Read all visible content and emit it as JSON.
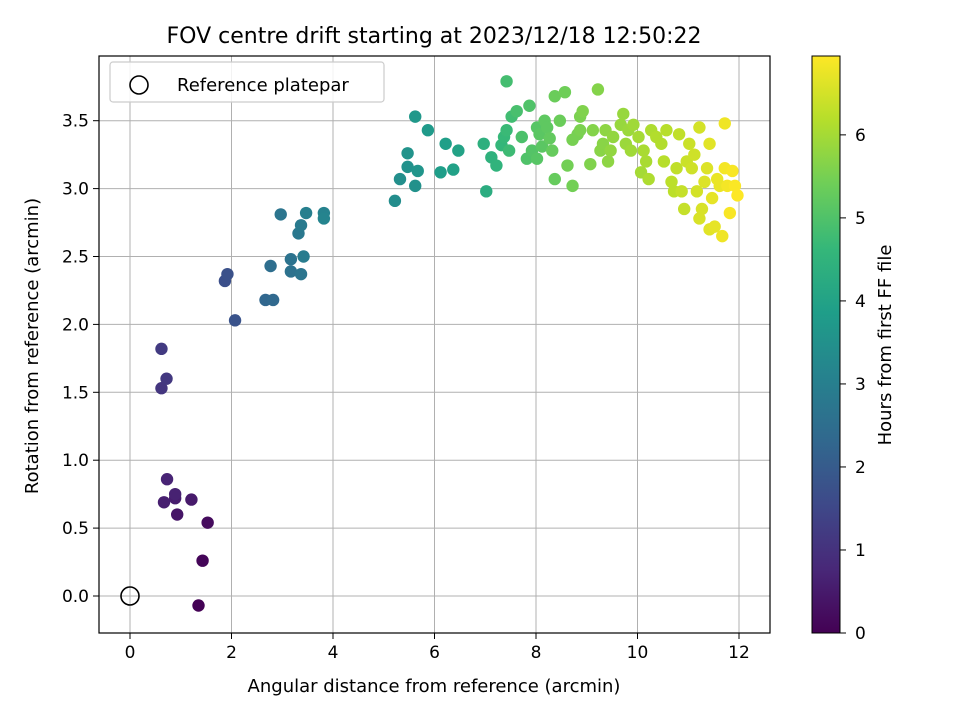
{
  "chart_data": {
    "type": "scatter",
    "title": "FOV centre drift starting at 2023/12/18 12:50:22",
    "xlabel": "Angular distance from reference (arcmin)",
    "ylabel": "Rotation from reference (arcmin)",
    "xlim": [
      -0.6,
      12.6
    ],
    "ylim": [
      -0.27,
      3.97
    ],
    "xticks": [
      0,
      2,
      4,
      6,
      8,
      10,
      12
    ],
    "yticks": [
      0.0,
      0.5,
      1.0,
      1.5,
      2.0,
      2.5,
      3.0,
      3.5
    ],
    "xtick_labels": [
      "0",
      "2",
      "4",
      "6",
      "8",
      "10",
      "12"
    ],
    "ytick_labels": [
      "0.0",
      "0.5",
      "1.0",
      "1.5",
      "2.0",
      "2.5",
      "3.0",
      "3.5"
    ],
    "grid": true,
    "legend": {
      "position": "top-left",
      "entries": [
        "Reference platepar"
      ]
    },
    "reference_point": {
      "x": 0,
      "y": 0
    },
    "colorbar": {
      "label": "Hours from first FF file",
      "colormap": "viridis",
      "range": [
        0,
        6.95
      ],
      "ticks": [
        0,
        1,
        2,
        3,
        4,
        5,
        6
      ],
      "tick_labels": [
        "0",
        "1",
        "2",
        "3",
        "4",
        "5",
        "6"
      ],
      "colors": [
        "#440154",
        "#482878",
        "#3e4989",
        "#31688e",
        "#26828e",
        "#1f9e89",
        "#35b779",
        "#6ece58",
        "#b5de2b",
        "#fde725"
      ]
    },
    "series": [
      {
        "points": [
          [
            1.35,
            -0.07,
            0.02
          ],
          [
            1.43,
            0.26,
            0.08
          ],
          [
            1.53,
            0.54,
            0.2
          ],
          [
            0.93,
            0.6,
            0.4
          ],
          [
            1.21,
            0.71,
            0.5
          ],
          [
            0.89,
            0.72,
            0.55
          ],
          [
            0.67,
            0.69,
            0.6
          ],
          [
            0.89,
            0.75,
            0.65
          ],
          [
            0.73,
            0.86,
            0.7
          ],
          [
            0.62,
            1.53,
            1.1
          ],
          [
            0.72,
            1.6,
            1.15
          ],
          [
            0.62,
            1.82,
            1.2
          ],
          [
            2.07,
            2.03,
            1.8
          ],
          [
            1.87,
            2.32,
            1.7
          ],
          [
            1.92,
            2.37,
            1.75
          ],
          [
            2.67,
            2.18,
            2.3
          ],
          [
            2.82,
            2.18,
            2.35
          ],
          [
            2.77,
            2.43,
            2.5
          ],
          [
            3.17,
            2.39,
            2.6
          ],
          [
            3.17,
            2.48,
            2.65
          ],
          [
            3.37,
            2.37,
            2.7
          ],
          [
            3.42,
            2.5,
            2.9
          ],
          [
            3.32,
            2.67,
            2.8
          ],
          [
            3.37,
            2.73,
            2.85
          ],
          [
            2.97,
            2.81,
            2.7
          ],
          [
            3.47,
            2.82,
            3.0
          ],
          [
            3.82,
            2.82,
            3.1
          ],
          [
            3.82,
            2.78,
            3.15
          ],
          [
            5.22,
            2.91,
            3.4
          ],
          [
            5.32,
            3.07,
            3.45
          ],
          [
            5.47,
            3.16,
            3.5
          ],
          [
            5.47,
            3.26,
            3.55
          ],
          [
            5.62,
            3.02,
            3.5
          ],
          [
            5.67,
            3.13,
            3.6
          ],
          [
            5.62,
            3.53,
            3.7
          ],
          [
            5.87,
            3.43,
            3.75
          ],
          [
            6.12,
            3.12,
            3.85
          ],
          [
            6.22,
            3.33,
            3.9
          ],
          [
            6.37,
            3.14,
            3.95
          ],
          [
            6.47,
            3.28,
            4.0
          ],
          [
            7.02,
            2.98,
            4.3
          ],
          [
            6.97,
            3.33,
            4.4
          ],
          [
            7.12,
            3.23,
            4.45
          ],
          [
            7.22,
            3.17,
            4.5
          ],
          [
            7.32,
            3.32,
            4.6
          ],
          [
            7.37,
            3.38,
            4.65
          ],
          [
            7.42,
            3.43,
            4.7
          ],
          [
            7.47,
            3.28,
            4.75
          ],
          [
            7.52,
            3.53,
            4.8
          ],
          [
            7.42,
            3.79,
            4.85
          ],
          [
            7.62,
            3.57,
            4.9
          ],
          [
            7.72,
            3.38,
            4.95
          ],
          [
            7.82,
            3.22,
            5.0
          ],
          [
            7.87,
            3.61,
            5.0
          ],
          [
            7.92,
            3.28,
            5.05
          ],
          [
            8.02,
            3.22,
            5.1
          ],
          [
            8.02,
            3.45,
            5.1
          ],
          [
            8.07,
            3.4,
            5.15
          ],
          [
            8.12,
            3.31,
            5.15
          ],
          [
            8.17,
            3.5,
            5.2
          ],
          [
            8.22,
            3.45,
            5.2
          ],
          [
            8.27,
            3.37,
            5.25
          ],
          [
            8.32,
            3.28,
            5.3
          ],
          [
            8.37,
            3.07,
            5.3
          ],
          [
            8.37,
            3.68,
            5.35
          ],
          [
            8.47,
            3.5,
            5.35
          ],
          [
            8.57,
            3.71,
            5.4
          ],
          [
            8.62,
            3.17,
            5.45
          ],
          [
            8.72,
            3.02,
            5.45
          ],
          [
            8.72,
            3.36,
            5.5
          ],
          [
            8.82,
            3.4,
            5.5
          ],
          [
            8.87,
            3.43,
            5.55
          ],
          [
            8.87,
            3.53,
            5.55
          ],
          [
            8.92,
            3.57,
            5.6
          ],
          [
            9.07,
            3.18,
            5.6
          ],
          [
            9.12,
            3.43,
            5.65
          ],
          [
            9.22,
            3.73,
            5.65
          ],
          [
            9.27,
            3.28,
            5.7
          ],
          [
            9.32,
            3.33,
            5.7
          ],
          [
            9.37,
            3.43,
            5.75
          ],
          [
            9.42,
            3.2,
            5.75
          ],
          [
            9.47,
            3.28,
            5.8
          ],
          [
            9.52,
            3.38,
            5.8
          ],
          [
            9.67,
            3.47,
            5.85
          ],
          [
            9.72,
            3.55,
            5.85
          ],
          [
            9.77,
            3.33,
            5.9
          ],
          [
            9.82,
            3.43,
            5.9
          ],
          [
            9.87,
            3.28,
            5.95
          ],
          [
            9.92,
            3.47,
            5.95
          ],
          [
            10.02,
            3.38,
            6.0
          ],
          [
            10.07,
            3.12,
            6.0
          ],
          [
            10.12,
            3.28,
            6.05
          ],
          [
            10.17,
            3.2,
            6.05
          ],
          [
            10.22,
            3.07,
            6.1
          ],
          [
            10.27,
            3.43,
            6.1
          ],
          [
            10.37,
            3.38,
            6.15
          ],
          [
            10.47,
            3.33,
            6.15
          ],
          [
            10.52,
            3.2,
            6.2
          ],
          [
            10.57,
            3.43,
            6.2
          ],
          [
            10.67,
            3.05,
            6.25
          ],
          [
            10.72,
            2.98,
            6.25
          ],
          [
            10.77,
            3.15,
            6.3
          ],
          [
            10.82,
            3.4,
            6.3
          ],
          [
            10.87,
            2.98,
            6.35
          ],
          [
            10.92,
            2.85,
            6.35
          ],
          [
            10.97,
            3.2,
            6.4
          ],
          [
            11.02,
            3.33,
            6.4
          ],
          [
            11.07,
            3.15,
            6.45
          ],
          [
            11.12,
            3.25,
            6.45
          ],
          [
            11.17,
            2.98,
            6.5
          ],
          [
            11.22,
            3.45,
            6.5
          ],
          [
            11.22,
            2.78,
            6.55
          ],
          [
            11.27,
            2.85,
            6.55
          ],
          [
            11.32,
            3.05,
            6.6
          ],
          [
            11.37,
            3.15,
            6.6
          ],
          [
            11.42,
            3.33,
            6.65
          ],
          [
            11.42,
            2.7,
            6.65
          ],
          [
            11.47,
            2.93,
            6.7
          ],
          [
            11.52,
            2.72,
            6.7
          ],
          [
            11.57,
            3.07,
            6.75
          ],
          [
            11.62,
            3.02,
            6.75
          ],
          [
            11.67,
            2.65,
            6.8
          ],
          [
            11.72,
            3.48,
            6.8
          ],
          [
            11.72,
            3.15,
            6.85
          ],
          [
            11.77,
            3.02,
            6.85
          ],
          [
            11.82,
            2.82,
            6.9
          ],
          [
            11.87,
            3.13,
            6.9
          ],
          [
            11.92,
            3.02,
            6.92
          ],
          [
            11.97,
            2.95,
            6.95
          ]
        ]
      }
    ]
  }
}
